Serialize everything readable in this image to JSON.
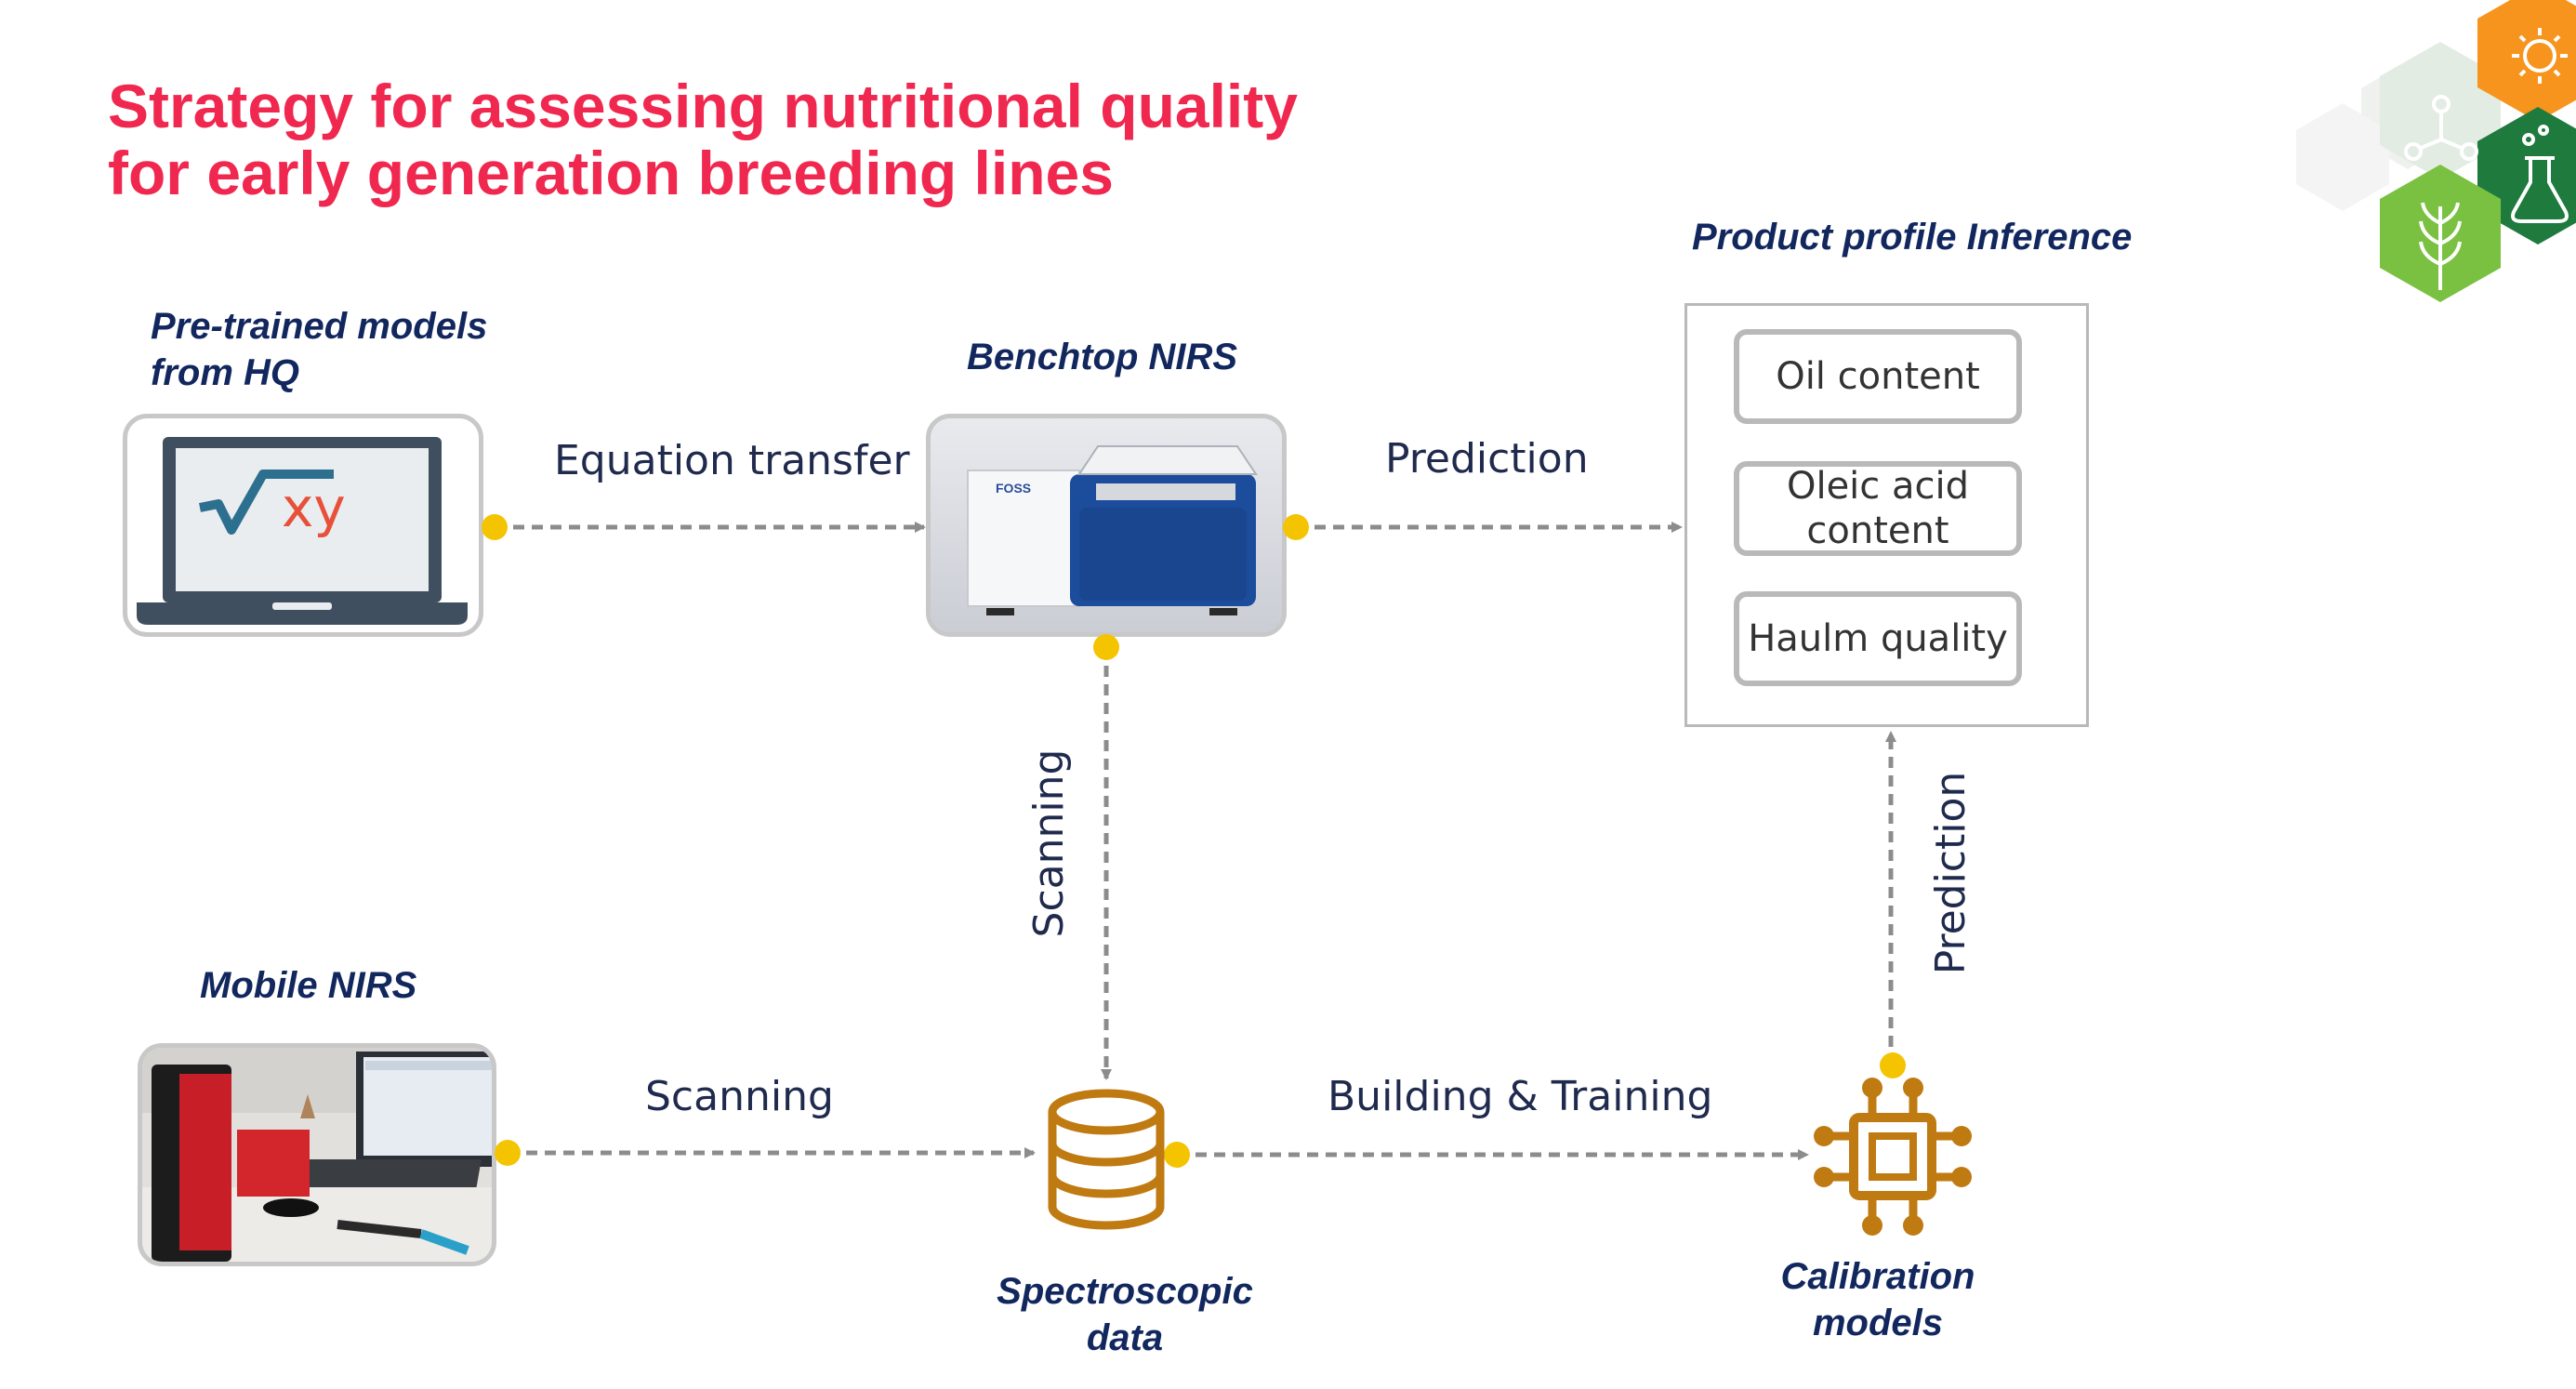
{
  "title": {
    "line1": "Strategy for assessing nutritional quality",
    "line2": "for early generation breeding lines"
  },
  "nodes": {
    "pretrained": {
      "label_line1": "Pre-trained models",
      "label_line2": "from HQ",
      "formula": "√xy"
    },
    "benchtop": {
      "label": "Benchtop NIRS",
      "brand": "FOSS"
    },
    "product_profile": {
      "label": "Product profile Inference",
      "items": [
        "Oil content",
        "Oleic acid content",
        "Haulm quality"
      ]
    },
    "mobile": {
      "label": "Mobile NIRS"
    },
    "spectroscopic": {
      "label_line1": "Spectroscopic",
      "label_line2": "data"
    },
    "calibration": {
      "label_line1": "Calibration",
      "label_line2": "models"
    }
  },
  "edges": [
    {
      "from": "pretrained",
      "to": "benchtop",
      "label": "Equation transfer"
    },
    {
      "from": "benchtop",
      "to": "product_profile",
      "label": "Prediction"
    },
    {
      "from": "benchtop",
      "to": "spectroscopic",
      "label": "Scanning"
    },
    {
      "from": "mobile",
      "to": "spectroscopic",
      "label": "Scanning"
    },
    {
      "from": "spectroscopic",
      "to": "calibration",
      "label": "Building & Training"
    },
    {
      "from": "calibration",
      "to": "product_profile",
      "label": "Prediction"
    }
  ],
  "colors": {
    "title": "#f0284f",
    "label": "#11275e",
    "connector": "#8c8c8c",
    "dot": "#f5c400",
    "icon": "#c07a12",
    "hex_orange": "#f7941d",
    "hex_green": "#7ac142",
    "hex_darkgreen": "#1f7a3e"
  }
}
